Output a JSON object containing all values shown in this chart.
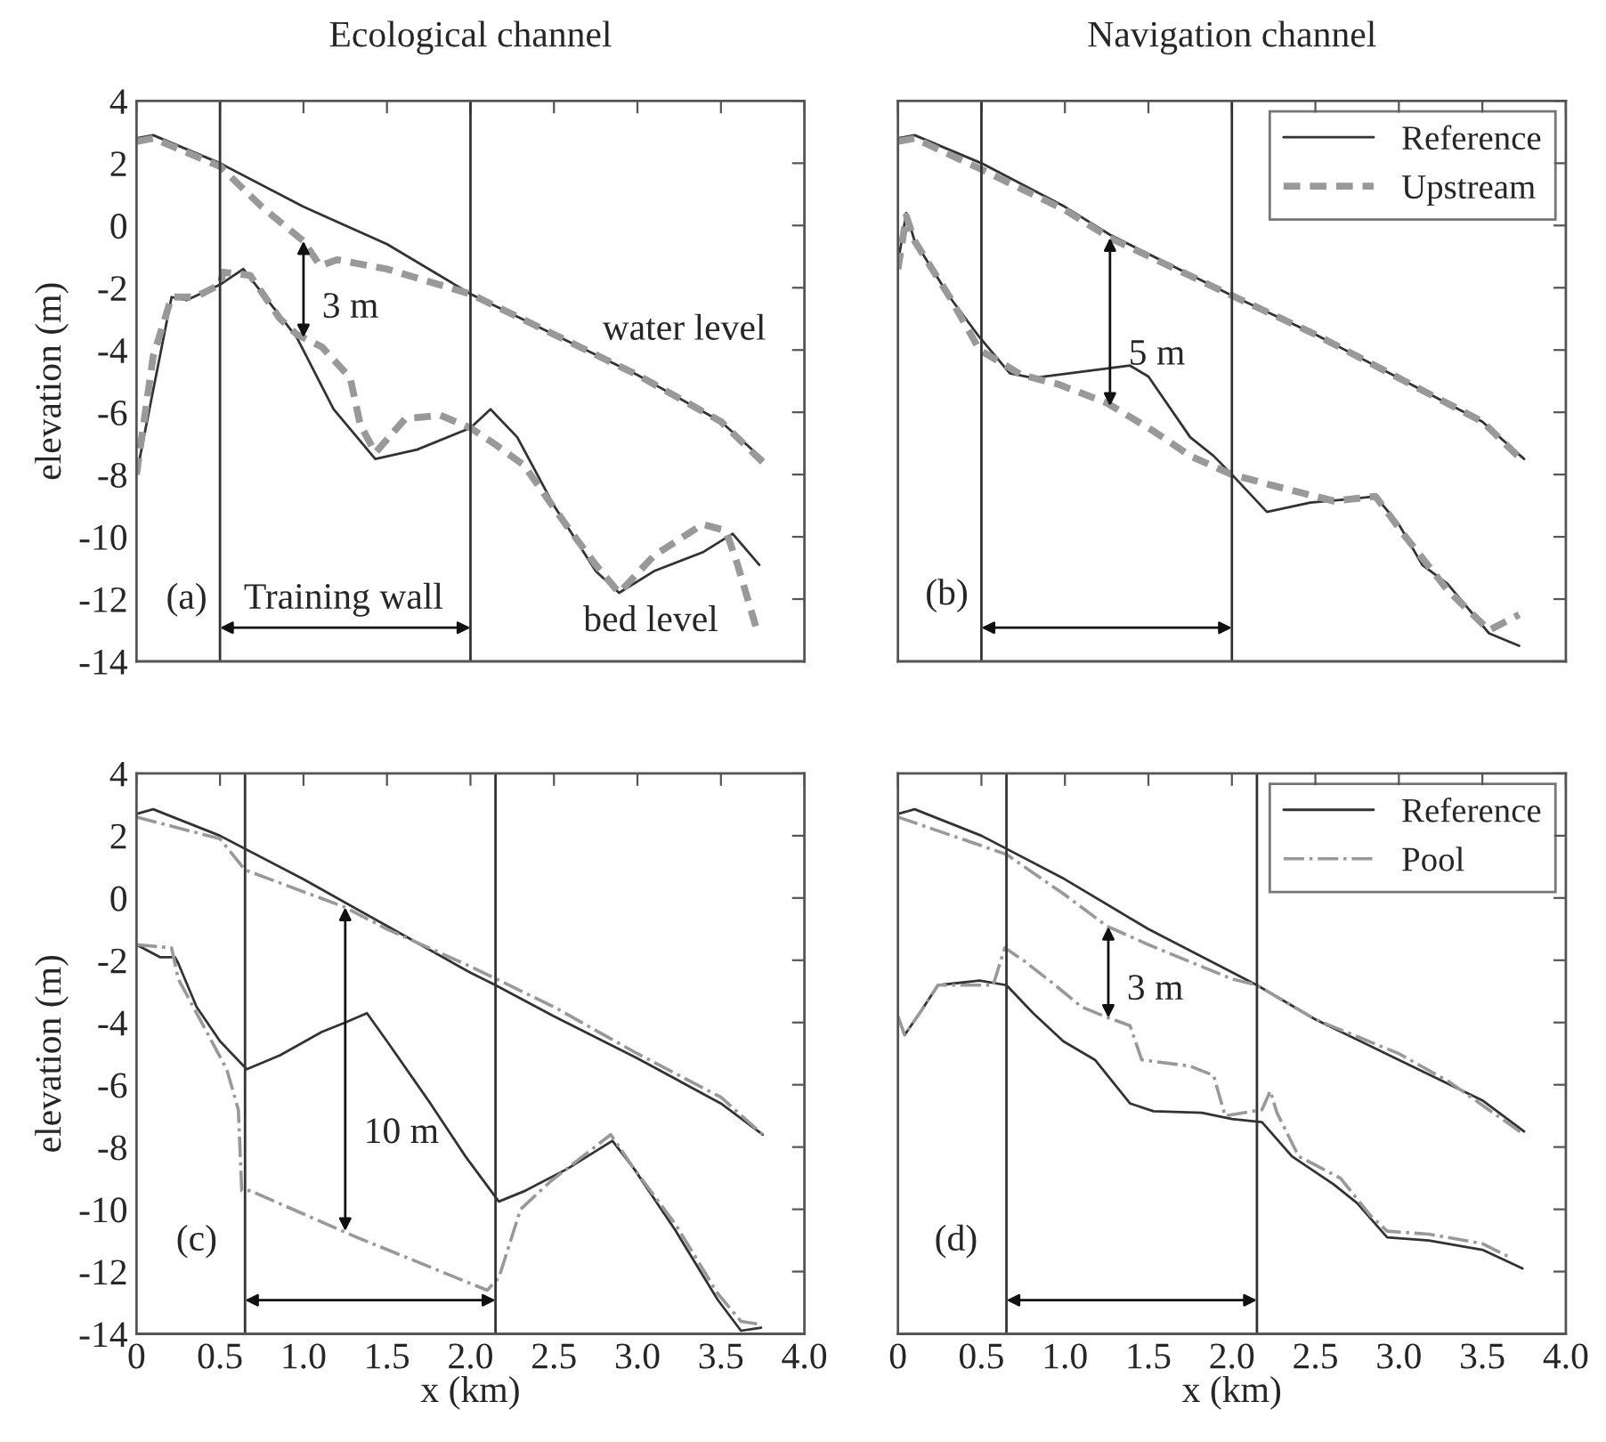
{
  "chart_data": [
    {
      "type": "line",
      "title": "Ecological channel",
      "ylabel": "elevation (m)",
      "xlim": [
        0,
        4.0
      ],
      "ylim": [
        -14,
        4
      ],
      "xticks": [
        0,
        0.5,
        1,
        1.5,
        2,
        2.5,
        3,
        3.5,
        4
      ],
      "yticks": [
        -14,
        -12,
        -10,
        -8,
        -6,
        -4,
        -2,
        0,
        2,
        4
      ],
      "tick_labels": "y",
      "legend": false,
      "series": [
        {
          "color": "#333333",
          "line_style": "solid",
          "x": [
            0,
            0.1,
            0.5,
            1.0,
            1.5,
            2.0,
            2.5,
            3.0,
            3.5,
            3.75
          ],
          "values": [
            2.8,
            2.9,
            2.0,
            0.6,
            -0.6,
            -2.2,
            -3.5,
            -4.8,
            -6.3,
            -7.5
          ]
        },
        {
          "color": "#999999",
          "line_style": "dashed",
          "x": [
            0,
            0.1,
            0.5,
            0.75,
            1.0,
            1.1,
            1.2,
            1.5,
            2.0,
            2.5,
            3.0,
            3.5,
            3.75
          ],
          "values": [
            2.7,
            2.8,
            1.9,
            0.6,
            -0.5,
            -1.3,
            -1.1,
            -1.4,
            -2.2,
            -3.5,
            -4.8,
            -6.3,
            -7.6
          ]
        },
        {
          "color": "#333333",
          "line_style": "solid",
          "x": [
            0,
            0.21,
            0.3,
            0.5,
            0.64,
            0.96,
            1.18,
            1.43,
            1.68,
            2.0,
            2.12,
            2.28,
            2.5,
            2.75,
            2.89,
            3.1,
            3.39,
            3.57,
            3.73
          ],
          "values": [
            -8,
            -2.3,
            -2.4,
            -1.9,
            -1.4,
            -3.6,
            -5.9,
            -7.5,
            -7.2,
            -6.5,
            -5.9,
            -6.8,
            -9.0,
            -11.1,
            -11.8,
            -11.1,
            -10.5,
            -9.9,
            -10.9
          ]
        },
        {
          "color": "#999999",
          "line_style": "dashed",
          "x": [
            0,
            0.1,
            0.21,
            0.35,
            0.5,
            0.52,
            0.68,
            0.86,
            0.96,
            1.11,
            1.28,
            1.34,
            1.43,
            1.61,
            1.82,
            2.0,
            2.14,
            2.32,
            2.57,
            2.75,
            2.89,
            3.1,
            3.39,
            3.53,
            3.6,
            3.71
          ],
          "values": [
            -8,
            -4.2,
            -2.3,
            -2.3,
            -1.9,
            -1.5,
            -1.6,
            -3.0,
            -3.5,
            -3.9,
            -4.9,
            -6.4,
            -7.3,
            -6.2,
            -6.1,
            -6.5,
            -7.0,
            -7.7,
            -9.6,
            -10.9,
            -11.8,
            -10.6,
            -9.6,
            -9.8,
            -10.9,
            -12.9
          ]
        }
      ],
      "ref_lines": [
        {
          "axis": "x",
          "value": 0.5,
          "color": "#333333"
        },
        {
          "axis": "x",
          "value": 2.0,
          "color": "#333333"
        }
      ],
      "annotations": [
        {
          "text": "3 m",
          "x": 1.0,
          "y": -3.6
        },
        "Training wall",
        "(a)",
        "water level",
        "bed level"
      ]
    },
    {
      "type": "line",
      "title": "Navigation channel",
      "xlim": [
        0,
        4.0
      ],
      "ylim": [
        -14,
        4
      ],
      "xticks": [
        0,
        0.5,
        1,
        1.5,
        2,
        2.5,
        3,
        3.5,
        4
      ],
      "yticks": [
        -14,
        -12,
        -10,
        -8,
        -6,
        -4,
        -2,
        0,
        2,
        4
      ],
      "tick_labels": false,
      "legend": "top right",
      "series": [
        {
          "name": "Reference",
          "color": "#333333",
          "line_style": "solid",
          "x": [
            0,
            0.1,
            0.5,
            1.0,
            1.27,
            2.0,
            2.5,
            3.0,
            3.5,
            3.75
          ],
          "values": [
            2.8,
            2.9,
            2.0,
            0.6,
            -0.3,
            -2.25,
            -3.5,
            -4.9,
            -6.3,
            -7.5
          ]
        },
        {
          "name": "Upstream",
          "color": "#999999",
          "line_style": "dashed",
          "x": [
            0,
            0.1,
            0.5,
            1.0,
            1.27,
            2.0,
            2.5,
            3.0,
            3.5,
            3.75
          ],
          "values": [
            2.7,
            2.8,
            1.8,
            0.5,
            -0.4,
            -2.25,
            -3.5,
            -4.9,
            -6.3,
            -7.6
          ]
        },
        {
          "color": "#333333",
          "line_style": "solid",
          "x": [
            0,
            0.05,
            0.1,
            0.31,
            0.49,
            0.67,
            0.81,
            1.1,
            1.39,
            1.5,
            1.75,
            1.89,
            2.0,
            2.21,
            2.47,
            2.68,
            2.86,
            3.0,
            3.14,
            3.29,
            3.54,
            3.72
          ],
          "values": [
            -1.2,
            0.4,
            -0.5,
            -2.3,
            -3.6,
            -4.75,
            -4.9,
            -4.7,
            -4.5,
            -4.85,
            -6.8,
            -7.4,
            -8.0,
            -9.2,
            -8.9,
            -8.8,
            -8.7,
            -9.6,
            -10.9,
            -11.5,
            -13.1,
            -13.5
          ]
        },
        {
          "color": "#999999",
          "line_style": "dashed",
          "x": [
            0,
            0.05,
            0.1,
            0.31,
            0.49,
            0.74,
            0.96,
            1.25,
            1.53,
            1.75,
            2.0,
            2.28,
            2.61,
            2.86,
            3.04,
            3.29,
            3.54,
            3.72
          ],
          "values": [
            -1.4,
            0.3,
            -0.5,
            -2.3,
            -4.0,
            -4.8,
            -5.1,
            -5.7,
            -6.6,
            -7.4,
            -8.0,
            -8.4,
            -8.85,
            -8.7,
            -10.0,
            -11.7,
            -13.0,
            -12.5
          ]
        }
      ],
      "ref_lines": [
        {
          "axis": "x",
          "value": 0.5,
          "color": "#333333"
        },
        {
          "axis": "x",
          "value": 2.0,
          "color": "#333333"
        }
      ],
      "annotations": [
        {
          "text": "5 m",
          "x": 1.27,
          "y": -5.8
        },
        {
          "text": "(b)",
          "x": 0.5,
          "y": -13
        }
      ]
    },
    {
      "type": "line",
      "ylabel": "elevation (m)",
      "xlabel": "x (km)",
      "xlim": [
        0,
        4.0
      ],
      "ylim": [
        -14,
        4
      ],
      "xticks": [
        0,
        0.5,
        {
          "value": 1,
          "label": "1.0"
        },
        1.5,
        {
          "value": 2,
          "label": "2.0"
        },
        2.5,
        {
          "value": 3,
          "label": "3.0"
        },
        3.5,
        {
          "value": 4,
          "label": "4.0"
        }
      ],
      "yticks": [
        -14,
        -12,
        -10,
        -8,
        -6,
        -4,
        -2,
        0,
        2,
        4
      ],
      "legend": false,
      "series": [
        {
          "color": "#333333",
          "line_style": "solid",
          "x": [
            0,
            0.1,
            0.5,
            1.0,
            1.5,
            2.0,
            2.15,
            2.5,
            3.0,
            3.5,
            3.75
          ],
          "values": [
            2.7,
            2.85,
            2.0,
            0.6,
            -0.9,
            -2.4,
            -2.8,
            -3.8,
            -5.15,
            -6.6,
            -7.6
          ]
        },
        {
          "color": "#999999",
          "line_style": "dashdot",
          "x": [
            0,
            0.5,
            0.65,
            1.0,
            1.25,
            1.5,
            2.0,
            2.5,
            3.0,
            3.5,
            3.75
          ],
          "values": [
            2.6,
            1.9,
            0.9,
            0.2,
            -0.3,
            -1.0,
            -2.2,
            -3.5,
            -5.0,
            -6.4,
            -7.6
          ]
        },
        {
          "color": "#333333",
          "line_style": "solid",
          "x": [
            0,
            0.14,
            0.23,
            0.25,
            0.36,
            0.5,
            0.66,
            0.86,
            1.11,
            1.25,
            1.38,
            1.5,
            1.76,
            1.97,
            2.17,
            2.33,
            2.58,
            2.85,
            2.98,
            3.23,
            3.48,
            3.62,
            3.74
          ],
          "values": [
            -1.5,
            -1.9,
            -1.9,
            -2.1,
            -3.5,
            -4.6,
            -5.5,
            -5.05,
            -4.3,
            -4.0,
            -3.7,
            -4.6,
            -6.6,
            -8.3,
            -9.75,
            -9.4,
            -8.7,
            -7.8,
            -8.7,
            -10.7,
            -12.9,
            -13.9,
            -13.8
          ]
        },
        {
          "color": "#999999",
          "line_style": "dashdot",
          "x": [
            0,
            0.21,
            0.25,
            0.39,
            0.54,
            0.61,
            0.63,
            0.68,
            1.32,
            2.1,
            2.17,
            2.3,
            2.48,
            2.84,
            2.98,
            3.23,
            3.48,
            3.62,
            3.74
          ],
          "values": [
            -1.5,
            -1.6,
            -2.6,
            -4.0,
            -5.5,
            -6.8,
            -9.4,
            -9.4,
            -10.9,
            -12.6,
            -12.2,
            -10.0,
            -9.1,
            -7.6,
            -8.7,
            -10.5,
            -12.7,
            -13.6,
            -13.7
          ]
        }
      ],
      "ref_lines": [
        {
          "axis": "x",
          "value": 0.65,
          "color": "#333333"
        },
        {
          "axis": "x",
          "value": 2.15,
          "color": "#333333"
        }
      ],
      "annotations": [
        {
          "text": "10 m",
          "x": 1.25,
          "y": -10.7
        },
        "(c)"
      ]
    },
    {
      "type": "line",
      "xlabel": "x (km)",
      "xlim": [
        0,
        4.0
      ],
      "ylim": [
        -14,
        4
      ],
      "xticks": [
        0,
        0.5,
        {
          "value": 1,
          "label": "1.0"
        },
        1.5,
        {
          "value": 2,
          "label": "2.0"
        },
        2.5,
        {
          "value": 3,
          "label": "3.0"
        },
        3.5,
        {
          "value": 4,
          "label": "4.0"
        }
      ],
      "yticks": [
        -14,
        -12,
        -10,
        -8,
        -6,
        -4,
        -2,
        0,
        2,
        4
      ],
      "tick_labels": "x",
      "legend": "top right",
      "series": [
        {
          "name": "Reference",
          "color": "#333333",
          "line_style": "solid",
          "x": [
            0,
            0.1,
            0.5,
            1.0,
            1.5,
            2.15,
            2.5,
            3.0,
            3.5,
            3.75
          ],
          "values": [
            2.7,
            2.85,
            2.0,
            0.6,
            -1.0,
            -2.8,
            -3.9,
            -5.2,
            -6.5,
            -7.5
          ]
        },
        {
          "name": "Pool",
          "color": "#999999",
          "line_style": "dashdot",
          "x": [
            0,
            0.65,
            1.0,
            1.25,
            1.5,
            2.0,
            2.15,
            2.5,
            3.0,
            3.3,
            3.75
          ],
          "values": [
            2.6,
            1.4,
            0.1,
            -0.9,
            -1.5,
            -2.6,
            -2.8,
            -3.9,
            -5.0,
            -5.9,
            -7.6
          ]
        },
        {
          "color": "#333333",
          "line_style": "solid",
          "x": [
            0,
            0.04,
            0.13,
            0.24,
            0.49,
            0.65,
            0.81,
            0.99,
            1.18,
            1.39,
            1.53,
            1.82,
            2.0,
            2.18,
            2.36,
            2.61,
            2.75,
            2.93,
            3.18,
            3.5,
            3.74
          ],
          "values": [
            -3.8,
            -4.4,
            -3.7,
            -2.8,
            -2.65,
            -2.8,
            -3.7,
            -4.6,
            -5.2,
            -6.6,
            -6.85,
            -6.9,
            -7.1,
            -7.2,
            -8.3,
            -9.2,
            -9.8,
            -10.9,
            -11.0,
            -11.3,
            -11.9
          ]
        },
        {
          "color": "#999999",
          "line_style": "dashdot",
          "x": [
            0,
            0.04,
            0.13,
            0.24,
            0.57,
            0.64,
            0.75,
            0.93,
            1.1,
            1.26,
            1.39,
            1.46,
            1.75,
            1.89,
            1.96,
            2.18,
            2.23,
            2.27,
            2.4,
            2.65,
            2.83,
            2.93,
            3.18,
            3.5,
            3.65
          ],
          "values": [
            -3.8,
            -4.4,
            -3.7,
            -2.8,
            -2.8,
            -1.6,
            -2.0,
            -2.75,
            -3.5,
            -3.85,
            -4.1,
            -5.2,
            -5.4,
            -5.7,
            -7.0,
            -6.8,
            -6.2,
            -6.9,
            -8.3,
            -9.0,
            -10.2,
            -10.7,
            -10.8,
            -11.1,
            -11.5
          ]
        }
      ],
      "ref_lines": [
        {
          "axis": "x",
          "value": 0.65,
          "color": "#333333"
        },
        {
          "axis": "x",
          "value": 2.15,
          "color": "#333333"
        }
      ],
      "annotations": [
        {
          "text": "3 m",
          "x": 1.26,
          "y": -3.85
        },
        "(d)"
      ]
    }
  ]
}
